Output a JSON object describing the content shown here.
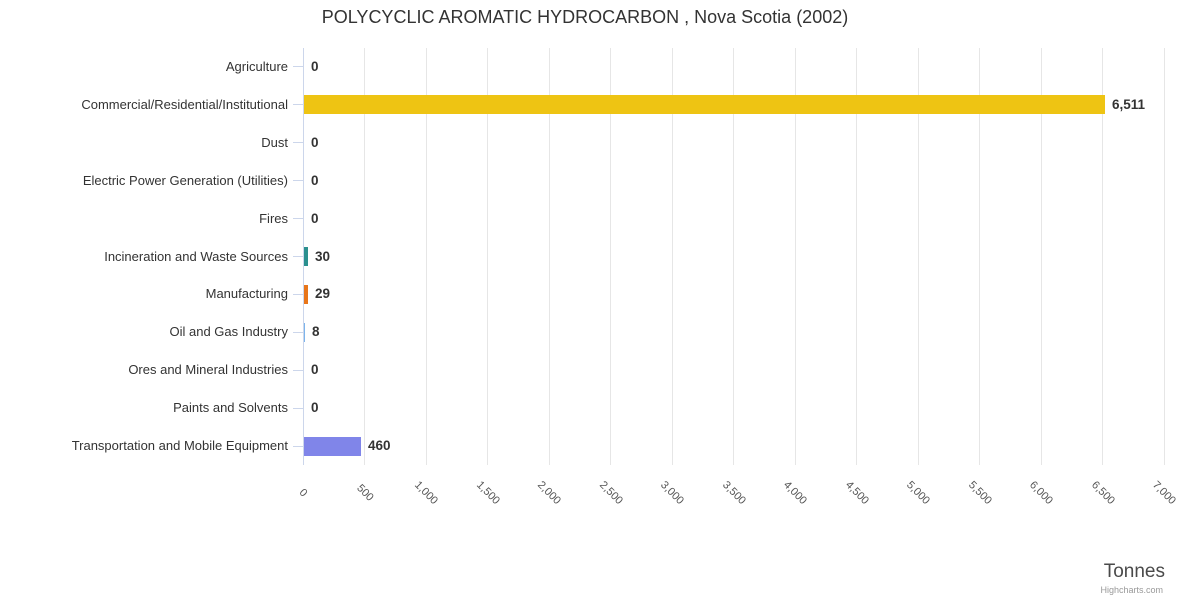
{
  "chart_data": {
    "type": "bar",
    "orientation": "horizontal",
    "title": "POLYCYCLIC AROMATIC HYDROCARBON , Nova Scotia (2002)",
    "xlabel": "Tonnes",
    "ylabel": "",
    "legend": false,
    "grid": true,
    "categories": [
      "Agriculture",
      "Commercial/Residential/Institutional",
      "Dust",
      "Electric Power Generation (Utilities)",
      "Fires",
      "Incineration and Waste Sources",
      "Manufacturing",
      "Oil and Gas Industry",
      "Ores and Mineral Industries",
      "Paints and Solvents",
      "Transportation and Mobile Equipment"
    ],
    "values": [
      0,
      6511,
      0,
      0,
      0,
      30,
      29,
      8,
      0,
      0,
      460
    ],
    "value_labels": [
      "0",
      "6,511",
      "0",
      "0",
      "0",
      "30",
      "29",
      "8",
      "0",
      "0",
      "460"
    ],
    "bar_colors": {
      "1": "#eec413",
      "5": "#2b908f",
      "6": "#e8761a",
      "7": "#7cb5ec",
      "10": "#8085e9"
    },
    "xlim": [
      0,
      7000
    ],
    "tick_interval": 500,
    "tick_labels": [
      "0",
      "500",
      "1,000",
      "1,500",
      "2,000",
      "2,500",
      "3,000",
      "3,500",
      "4,000",
      "4,500",
      "5,000",
      "5,500",
      "6,000",
      "6,500",
      "7,000"
    ]
  },
  "credits": {
    "label": "Highcharts.com"
  },
  "theme": {
    "axis_line": "#ccd6eb",
    "gridline": "#e6e6e6",
    "text": "#333333",
    "tick_text": "#555555",
    "default_bar": "#7cb5ec"
  }
}
